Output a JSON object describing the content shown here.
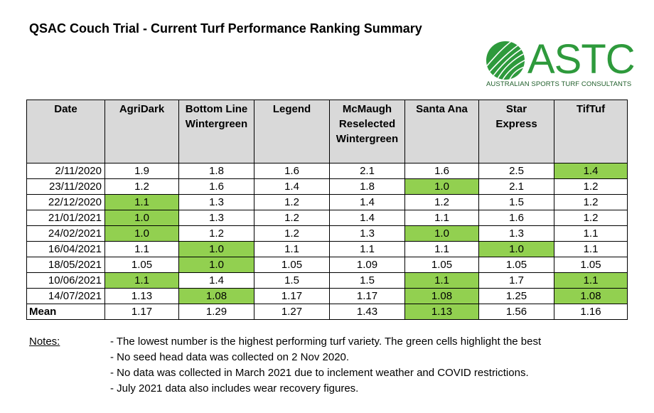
{
  "title": "QSAC Couch Trial - Current Turf Performance Ranking Summary",
  "logo": {
    "wordmark": "ASTC",
    "tagline": "AUSTRALIAN SPORTS TURF CONSULTANTS",
    "color": "#2e9a3c"
  },
  "colors": {
    "header_bg": "#d9d9d9",
    "highlight_green": "#92d050"
  },
  "table": {
    "headers": [
      [
        "Date"
      ],
      [
        "AgriDark"
      ],
      [
        "Bottom Line",
        "Wintergreen"
      ],
      [
        "Legend"
      ],
      [
        "McMaugh",
        "Reselected",
        "Wintergreen"
      ],
      [
        "Santa Ana"
      ],
      [
        "Star",
        "Express"
      ],
      [
        "TifTuf"
      ]
    ],
    "rows": [
      {
        "date": "2/11/2020",
        "values": [
          "1.9",
          "1.8",
          "1.6",
          "2.1",
          "1.6",
          "2.5",
          "1.4"
        ],
        "green": [
          6
        ]
      },
      {
        "date": "23/11/2020",
        "values": [
          "1.2",
          "1.6",
          "1.4",
          "1.8",
          "1.0",
          "2.1",
          "1.2"
        ],
        "green": [
          4
        ]
      },
      {
        "date": "22/12/2020",
        "values": [
          "1.1",
          "1.3",
          "1.2",
          "1.4",
          "1.2",
          "1.5",
          "1.2"
        ],
        "green": [
          0
        ]
      },
      {
        "date": "21/01/2021",
        "values": [
          "1.0",
          "1.3",
          "1.2",
          "1.4",
          "1.1",
          "1.6",
          "1.2"
        ],
        "green": [
          0
        ]
      },
      {
        "date": "24/02/2021",
        "values": [
          "1.0",
          "1.2",
          "1.2",
          "1.3",
          "1.0",
          "1.3",
          "1.1"
        ],
        "green": [
          0,
          4
        ]
      },
      {
        "date": "16/04/2021",
        "values": [
          "1.1",
          "1.0",
          "1.1",
          "1.1",
          "1.1",
          "1.0",
          "1.1"
        ],
        "green": [
          1,
          5
        ]
      },
      {
        "date": "18/05/2021",
        "values": [
          "1.05",
          "1.0",
          "1.05",
          "1.09",
          "1.05",
          "1.05",
          "1.05"
        ],
        "green": [
          1
        ]
      },
      {
        "date": "10/06/2021",
        "values": [
          "1.1",
          "1.4",
          "1.5",
          "1.5",
          "1.1",
          "1.7",
          "1.1"
        ],
        "green": [
          0,
          4,
          6
        ]
      },
      {
        "date": "14/07/2021",
        "values": [
          "1.13",
          "1.08",
          "1.17",
          "1.17",
          "1.08",
          "1.25",
          "1.08"
        ],
        "green": [
          1,
          4,
          6
        ]
      }
    ],
    "mean": {
      "label": "Mean",
      "values": [
        "1.17",
        "1.29",
        "1.27",
        "1.43",
        "1.13",
        "1.56",
        "1.16"
      ],
      "green": [
        4
      ],
      "bold": [
        4
      ]
    }
  },
  "notes": {
    "label": "Notes:",
    "items": [
      "- The lowest number is the highest performing turf variety. The green cells highlight the best",
      "- No seed head data was collected on 2 Nov 2020.",
      "- No data was collected in March 2021 due to inclement weather and COVID restrictions.",
      "- July 2021 data also includes wear recovery figures."
    ]
  }
}
